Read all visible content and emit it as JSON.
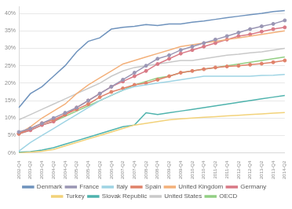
{
  "chart_data": {
    "type": "line",
    "categories": [
      "2002-Q4",
      "2003-Q2",
      "2003-Q4",
      "2004-Q2",
      "2004-Q4",
      "2005-Q2",
      "2005-Q4",
      "2006-Q2",
      "2006-Q4",
      "2007-Q2",
      "2007-Q4",
      "2008-Q2",
      "2008-Q4",
      "2009-Q2",
      "2009-Q4",
      "2010-Q2",
      "2010-Q4",
      "2011-Q2",
      "2011-Q4",
      "2012-Q2",
      "2012-Q4",
      "2013-Q2",
      "2013-Q4",
      "2014-Q2"
    ],
    "series": [
      {
        "name": "Denmark",
        "color": "#6f93bd",
        "values": [
          13,
          17,
          19,
          22,
          25,
          29,
          32,
          33,
          35.5,
          36,
          36.3,
          36.8,
          36.5,
          37,
          37,
          37.5,
          37.8,
          38.3,
          38.8,
          39.2,
          39.6,
          40,
          40.5,
          40.8
        ]
      },
      {
        "name": "France",
        "color": "#9a96b4",
        "marker": "circle",
        "values": [
          6,
          7,
          8.5,
          10,
          11.5,
          13,
          15,
          17,
          19,
          21,
          23,
          25,
          27,
          28,
          29.5,
          30.5,
          31.5,
          32.5,
          33.5,
          34.5,
          35.5,
          36.3,
          37,
          38
        ]
      },
      {
        "name": "Italy",
        "color": "#9fd4e4",
        "values": [
          0.5,
          3,
          5,
          7,
          9,
          11,
          13,
          15,
          16.5,
          18,
          19,
          19.5,
          20,
          20.5,
          21,
          21.5,
          22,
          22,
          22,
          22,
          22,
          22.2,
          22.3,
          22.5
        ]
      },
      {
        "name": "Spain",
        "color": "#e0826a",
        "marker": "circle",
        "values": [
          5.5,
          7,
          8.5,
          9.5,
          11,
          12.5,
          14,
          16,
          17.5,
          18.5,
          19.5,
          20,
          21,
          22,
          23,
          23.5,
          24,
          24.5,
          24.8,
          25,
          25.3,
          25.6,
          26,
          26.5
        ]
      },
      {
        "name": "United Kingdom",
        "color": "#f3b07a",
        "values": [
          5.5,
          7.5,
          10,
          12,
          14,
          17,
          19.5,
          21.5,
          23.5,
          25.5,
          26.5,
          27.5,
          28.5,
          29.5,
          30.5,
          31,
          31.5,
          32,
          32.5,
          33,
          33.5,
          34,
          34.5,
          35
        ]
      },
      {
        "name": "Germany",
        "color": "#d97a86",
        "marker": "circle",
        "values": [
          5.5,
          6.5,
          8,
          9,
          11,
          13,
          15,
          17,
          19,
          20.5,
          22,
          23.5,
          25.5,
          27,
          28.5,
          29.5,
          30.5,
          31.5,
          32.5,
          33.5,
          34,
          34.8,
          35.5,
          36
        ]
      },
      {
        "name": "Turkey",
        "color": "#f2d27a",
        "values": [
          0,
          0.2,
          0.5,
          1,
          2,
          3,
          4,
          5,
          6,
          7,
          8,
          8.5,
          9,
          9.5,
          9.8,
          10,
          10.2,
          10.4,
          10.6,
          10.8,
          11,
          11.2,
          11.4,
          11.6
        ]
      },
      {
        "name": "Slovak Republic",
        "color": "#4fb3ad",
        "values": [
          0.2,
          0.4,
          0.8,
          1.5,
          2.5,
          3.5,
          4.5,
          5.5,
          6.5,
          7.5,
          8,
          11.5,
          11,
          11.5,
          12,
          12.5,
          13,
          13.5,
          14,
          14.5,
          15,
          15.5,
          16,
          16.5
        ]
      },
      {
        "name": "United States",
        "color": "#c9c9c9",
        "values": [
          9.5,
          11,
          12.5,
          14,
          15.5,
          17,
          18.5,
          20,
          22,
          23.5,
          24.5,
          25,
          25.5,
          26,
          26.5,
          26.5,
          27,
          27.5,
          28,
          28.3,
          28.7,
          29,
          29.5,
          30
        ]
      },
      {
        "name": "OECD",
        "color": "#93cf84",
        "values": [
          5.5,
          6.5,
          8,
          9,
          10.5,
          12,
          13.5,
          15,
          16.5,
          18,
          19.5,
          20.5,
          21.5,
          22,
          23,
          23.5,
          24,
          24.5,
          25,
          25.5,
          26,
          26.5,
          27,
          27.5
        ]
      }
    ],
    "ylim": [
      0,
      42
    ],
    "yticks": [
      {
        "value": 0,
        "label": "0%"
      },
      {
        "value": 5,
        "label": "5%"
      },
      {
        "value": 10,
        "label": "10%"
      },
      {
        "value": 15,
        "label": "15%"
      },
      {
        "value": 20,
        "label": "20%"
      },
      {
        "value": 25,
        "label": "25%"
      },
      {
        "value": 30,
        "label": "30%"
      },
      {
        "value": 35,
        "label": "35%"
      },
      {
        "value": 40,
        "label": "40%"
      }
    ],
    "grid": true,
    "legend": "bottom"
  }
}
